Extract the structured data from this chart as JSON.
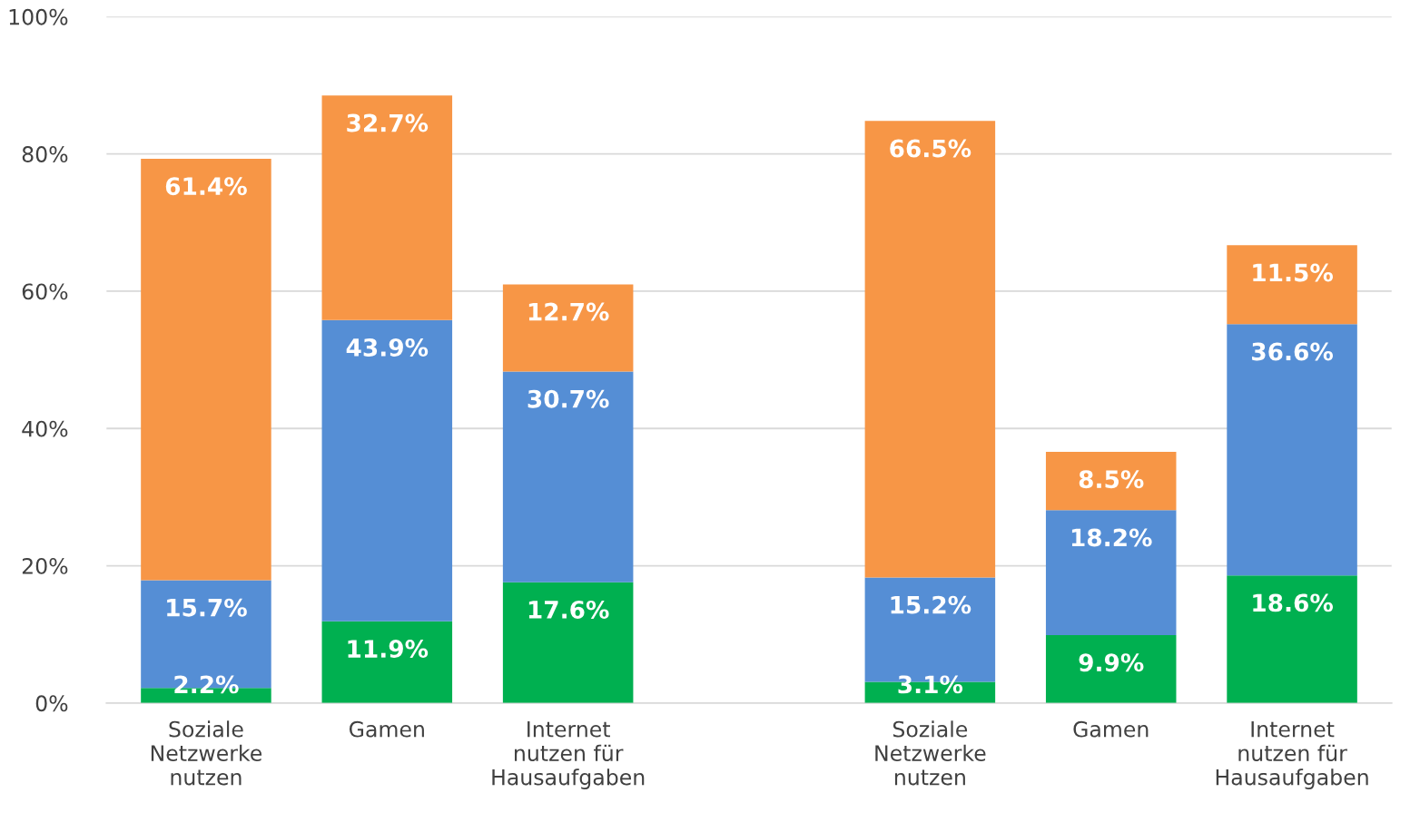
{
  "chart_data": {
    "type": "bar",
    "stacked": true,
    "categories": [
      "Soziale\nNetzwerke\nnutzen",
      "Gamen",
      "Internet\nnutzen für\nHausaufgaben",
      null,
      "Soziale\nNetzwerke\nnutzen",
      "Gamen",
      "Internet\nnutzen für\nHausaufgaben"
    ],
    "series": [
      {
        "color": "#00b050",
        "values": [
          2.2,
          11.9,
          17.6,
          null,
          3.1,
          9.9,
          18.6
        ],
        "value_labels": [
          "2.2%",
          "11.9%",
          "17.6%",
          null,
          "3.1%",
          "9.9%",
          "18.6%"
        ]
      },
      {
        "color": "#558ed5",
        "values": [
          15.7,
          43.9,
          30.7,
          null,
          15.2,
          18.2,
          36.6
        ],
        "value_labels": [
          "15.7%",
          "43.9%",
          "30.7%",
          null,
          "15.2%",
          "18.2%",
          "36.6%"
        ]
      },
      {
        "color": "#f79646",
        "values": [
          61.4,
          32.7,
          12.7,
          null,
          66.5,
          8.5,
          11.5
        ],
        "value_labels": [
          "61.4%",
          "32.7%",
          "12.7%",
          null,
          "66.5%",
          "8.5%",
          "11.5%"
        ]
      }
    ],
    "ylim": [
      0,
      100
    ],
    "yticks": [
      {
        "value": 0,
        "label": "0%"
      },
      {
        "value": 20,
        "label": "20%"
      },
      {
        "value": 40,
        "label": "40%"
      },
      {
        "value": 60,
        "label": "60%"
      },
      {
        "value": 80,
        "label": "80%"
      },
      {
        "value": 100,
        "label": "100%"
      }
    ],
    "grid": "y"
  }
}
